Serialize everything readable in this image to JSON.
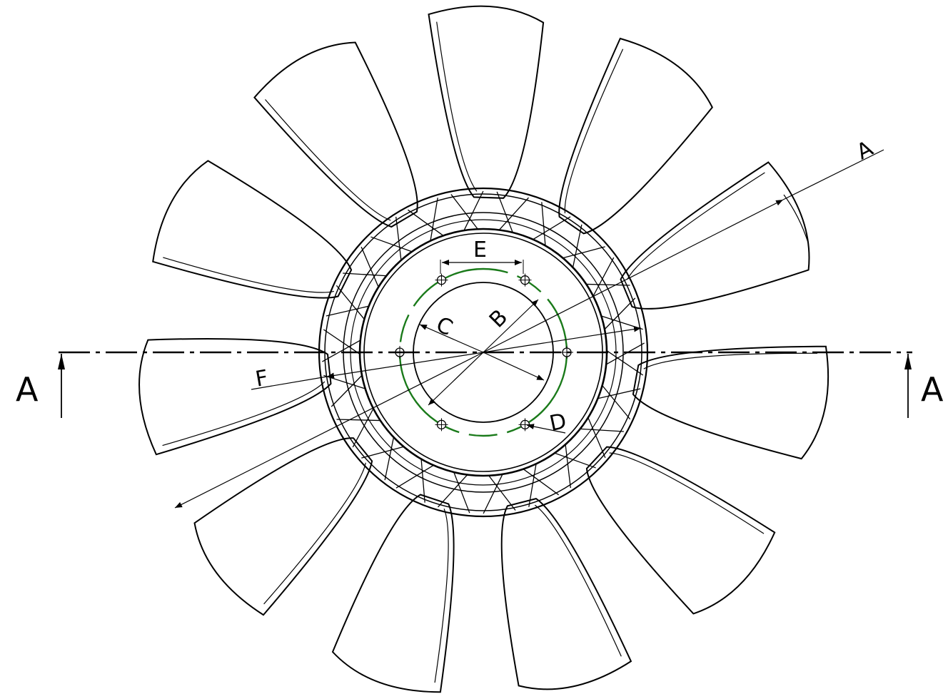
{
  "drawing": {
    "section_marker_left": "A",
    "section_marker_right": "A",
    "dimension_labels": {
      "outer_radius": "A",
      "bolt_circle": "B",
      "pilot_bore": "C",
      "bolt_hole": "D",
      "hole_spacing": "E",
      "overall_diameter": "F"
    },
    "blade_count": 11,
    "bolt_hole_count": 6,
    "colors": {
      "line": "#000000",
      "bolt_circle": "#1a7a1a",
      "background": "#ffffff"
    }
  }
}
